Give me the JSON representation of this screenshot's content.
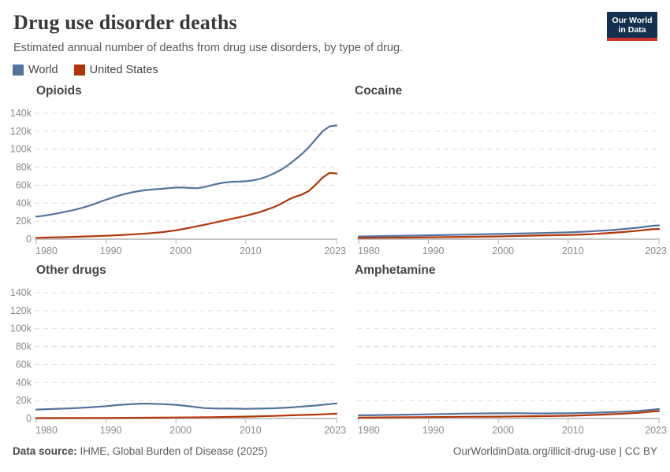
{
  "header": {
    "title": "Drug use disorder deaths",
    "subtitle": "Estimated annual number of deaths from drug use disorders, by type of drug.",
    "logo": {
      "line1": "Our World",
      "line2": "in Data",
      "bg": "#13304f",
      "bar": "#c9342c"
    }
  },
  "legend": {
    "items": [
      {
        "label": "World",
        "color": "#54749e"
      },
      {
        "label": "United States",
        "color": "#b13507"
      }
    ]
  },
  "footer": {
    "source_label": "Data source:",
    "source_text": " IHME, Global Burden of Disease (2025)",
    "right_text": "OurWorldinData.org/illicit-drug-use | CC BY"
  },
  "chart_data": [
    {
      "id": "opioids",
      "type": "line",
      "title": "Opioids",
      "xlabel": "",
      "ylabel": "",
      "xlim": [
        1980,
        2023
      ],
      "ylim": [
        0,
        140000
      ],
      "xticks": [
        1980,
        1990,
        2000,
        2010,
        2023
      ],
      "ytick_labels": [
        "0",
        "20k",
        "40k",
        "60k",
        "80k",
        "100k",
        "120k",
        "140k"
      ],
      "grid": "dashed-horizontal",
      "legend_position": "top-shared",
      "series": [
        {
          "name": "World",
          "color": "#54749e",
          "points": [
            [
              1980,
              25000
            ],
            [
              1981,
              26000
            ],
            [
              1982,
              27200
            ],
            [
              1983,
              28600
            ],
            [
              1984,
              30200
            ],
            [
              1985,
              31800
            ],
            [
              1986,
              33600
            ],
            [
              1987,
              35800
            ],
            [
              1988,
              38200
            ],
            [
              1989,
              41000
            ],
            [
              1990,
              43800
            ],
            [
              1991,
              46500
            ],
            [
              1992,
              48800
            ],
            [
              1993,
              50800
            ],
            [
              1994,
              52500
            ],
            [
              1995,
              53800
            ],
            [
              1996,
              54800
            ],
            [
              1997,
              55500
            ],
            [
              1998,
              56000
            ],
            [
              1999,
              56800
            ],
            [
              2000,
              57400
            ],
            [
              2001,
              57400
            ],
            [
              2002,
              57000
            ],
            [
              2003,
              56600
            ],
            [
              2004,
              57800
            ],
            [
              2005,
              59800
            ],
            [
              2006,
              61800
            ],
            [
              2007,
              63000
            ],
            [
              2008,
              63800
            ],
            [
              2009,
              64000
            ],
            [
              2010,
              64400
            ],
            [
              2011,
              65400
            ],
            [
              2012,
              67000
            ],
            [
              2013,
              69600
            ],
            [
              2014,
              73000
            ],
            [
              2015,
              77000
            ],
            [
              2016,
              82000
            ],
            [
              2017,
              88000
            ],
            [
              2018,
              94500
            ],
            [
              2019,
              102000
            ],
            [
              2020,
              111000
            ],
            [
              2021,
              120000
            ],
            [
              2022,
              125500
            ],
            [
              2023,
              126500
            ]
          ]
        },
        {
          "name": "United States",
          "color": "#b13507",
          "points": [
            [
              1980,
              1500
            ],
            [
              1982,
              1800
            ],
            [
              1984,
              2200
            ],
            [
              1986,
              2700
            ],
            [
              1988,
              3200
            ],
            [
              1990,
              3800
            ],
            [
              1992,
              4500
            ],
            [
              1994,
              5400
            ],
            [
              1996,
              6400
            ],
            [
              1998,
              7800
            ],
            [
              2000,
              9800
            ],
            [
              2002,
              12600
            ],
            [
              2004,
              15800
            ],
            [
              2006,
              19200
            ],
            [
              2008,
              22600
            ],
            [
              2010,
              26000
            ],
            [
              2012,
              30000
            ],
            [
              2014,
              35500
            ],
            [
              2015,
              39000
            ],
            [
              2016,
              43500
            ],
            [
              2017,
              47000
            ],
            [
              2018,
              49500
            ],
            [
              2019,
              53500
            ],
            [
              2020,
              60500
            ],
            [
              2021,
              68500
            ],
            [
              2022,
              73800
            ],
            [
              2023,
              73000
            ]
          ]
        }
      ]
    },
    {
      "id": "cocaine",
      "type": "line",
      "title": "Cocaine",
      "xlabel": "",
      "ylabel": "",
      "xlim": [
        1980,
        2023
      ],
      "ylim": [
        0,
        140000
      ],
      "xticks": [
        1980,
        1990,
        2000,
        2010,
        2023
      ],
      "ytick_labels": [
        "0",
        "20k",
        "40k",
        "60k",
        "80k",
        "100k",
        "120k",
        "140k"
      ],
      "grid": "dashed-horizontal",
      "legend_position": "top-shared",
      "series": [
        {
          "name": "World",
          "color": "#54749e",
          "points": [
            [
              1980,
              3000
            ],
            [
              1985,
              3600
            ],
            [
              1990,
              4300
            ],
            [
              1995,
              5000
            ],
            [
              2000,
              5800
            ],
            [
              2005,
              6600
            ],
            [
              2010,
              7600
            ],
            [
              2012,
              8200
            ],
            [
              2014,
              9000
            ],
            [
              2016,
              10000
            ],
            [
              2018,
              11300
            ],
            [
              2020,
              12800
            ],
            [
              2022,
              14800
            ],
            [
              2023,
              15300
            ]
          ]
        },
        {
          "name": "United States",
          "color": "#b13507",
          "points": [
            [
              1980,
              1300
            ],
            [
              1985,
              1600
            ],
            [
              1990,
              2000
            ],
            [
              1995,
              2500
            ],
            [
              2000,
              3100
            ],
            [
              2005,
              3900
            ],
            [
              2010,
              4700
            ],
            [
              2012,
              5200
            ],
            [
              2014,
              5900
            ],
            [
              2016,
              6900
            ],
            [
              2018,
              8000
            ],
            [
              2020,
              9400
            ],
            [
              2022,
              11000
            ],
            [
              2023,
              11300
            ]
          ]
        }
      ]
    },
    {
      "id": "other-drugs",
      "type": "line",
      "title": "Other drugs",
      "xlabel": "",
      "ylabel": "",
      "xlim": [
        1980,
        2023
      ],
      "ylim": [
        0,
        140000
      ],
      "xticks": [
        1980,
        1990,
        2000,
        2010,
        2023
      ],
      "ytick_labels": [
        "0",
        "20k",
        "40k",
        "60k",
        "80k",
        "100k",
        "120k",
        "140k"
      ],
      "grid": "dashed-horizontal",
      "legend_position": "top-shared",
      "series": [
        {
          "name": "World",
          "color": "#54749e",
          "points": [
            [
              1980,
              10000
            ],
            [
              1982,
              10500
            ],
            [
              1984,
              11000
            ],
            [
              1986,
              11700
            ],
            [
              1988,
              12600
            ],
            [
              1990,
              13700
            ],
            [
              1992,
              15200
            ],
            [
              1994,
              16200
            ],
            [
              1995,
              16500
            ],
            [
              1996,
              16500
            ],
            [
              1998,
              16000
            ],
            [
              2000,
              15200
            ],
            [
              2002,
              13600
            ],
            [
              2004,
              11600
            ],
            [
              2006,
              11000
            ],
            [
              2008,
              11000
            ],
            [
              2010,
              10800
            ],
            [
              2012,
              11000
            ],
            [
              2014,
              11400
            ],
            [
              2016,
              12200
            ],
            [
              2018,
              13200
            ],
            [
              2020,
              14400
            ],
            [
              2022,
              16000
            ],
            [
              2023,
              16800
            ]
          ]
        },
        {
          "name": "United States",
          "color": "#b13507",
          "points": [
            [
              1980,
              400
            ],
            [
              1985,
              500
            ],
            [
              1990,
              650
            ],
            [
              1995,
              850
            ],
            [
              2000,
              1100
            ],
            [
              2005,
              1500
            ],
            [
              2010,
              2100
            ],
            [
              2014,
              2900
            ],
            [
              2018,
              3900
            ],
            [
              2020,
              4400
            ],
            [
              2022,
              5000
            ],
            [
              2023,
              5300
            ]
          ]
        }
      ]
    },
    {
      "id": "amphetamine",
      "type": "line",
      "title": "Amphetamine",
      "xlabel": "",
      "ylabel": "",
      "xlim": [
        1980,
        2023
      ],
      "ylim": [
        0,
        140000
      ],
      "xticks": [
        1980,
        1990,
        2000,
        2010,
        2023
      ],
      "ytick_labels": [
        "0",
        "20k",
        "40k",
        "60k",
        "80k",
        "100k",
        "120k",
        "140k"
      ],
      "grid": "dashed-horizontal",
      "legend_position": "top-shared",
      "series": [
        {
          "name": "World",
          "color": "#54749e",
          "points": [
            [
              1980,
              3500
            ],
            [
              1985,
              4000
            ],
            [
              1990,
              4600
            ],
            [
              1995,
              5400
            ],
            [
              2000,
              5800
            ],
            [
              2003,
              5900
            ],
            [
              2006,
              5600
            ],
            [
              2008,
              5700
            ],
            [
              2010,
              5900
            ],
            [
              2012,
              6100
            ],
            [
              2014,
              6500
            ],
            [
              2016,
              7000
            ],
            [
              2018,
              7600
            ],
            [
              2020,
              8400
            ],
            [
              2022,
              9800
            ],
            [
              2023,
              10500
            ]
          ]
        },
        {
          "name": "United States",
          "color": "#b13507",
          "points": [
            [
              1980,
              1000
            ],
            [
              1985,
              1300
            ],
            [
              1990,
              1600
            ],
            [
              1995,
              1900
            ],
            [
              2000,
              2100
            ],
            [
              2005,
              2500
            ],
            [
              2008,
              2800
            ],
            [
              2010,
              3100
            ],
            [
              2012,
              3500
            ],
            [
              2014,
              4000
            ],
            [
              2016,
              4700
            ],
            [
              2018,
              5400
            ],
            [
              2020,
              6300
            ],
            [
              2022,
              7800
            ],
            [
              2023,
              8200
            ]
          ]
        }
      ]
    }
  ]
}
